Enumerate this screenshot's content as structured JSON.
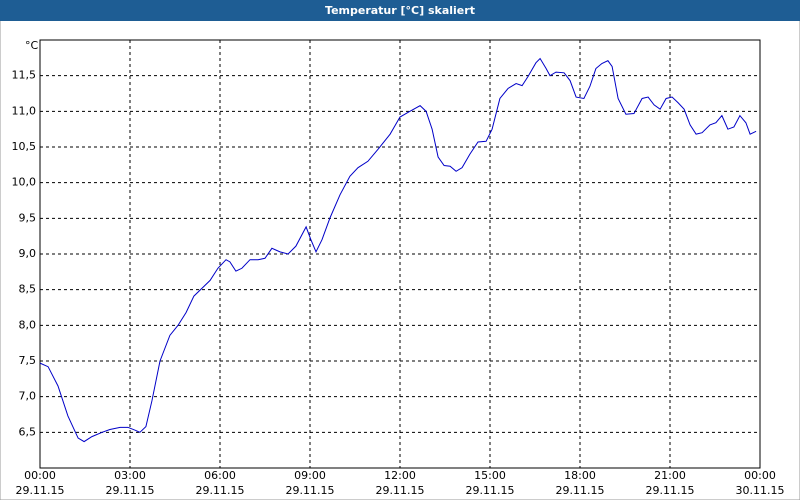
{
  "chart_data": {
    "type": "line",
    "title": "Temperatur [°C] skaliert",
    "y_label": "°C",
    "grid": true,
    "xlim": [
      0,
      24
    ],
    "ylim": [
      6,
      12
    ],
    "yticks": [
      {
        "value": 6.5,
        "label": "6,5"
      },
      {
        "value": 7,
        "label": "7,0"
      },
      {
        "value": 7.5,
        "label": "7,5"
      },
      {
        "value": 8,
        "label": "8,0"
      },
      {
        "value": 8.5,
        "label": "8,5"
      },
      {
        "value": 9,
        "label": "9,0"
      },
      {
        "value": 9.5,
        "label": "9,5"
      },
      {
        "value": 10,
        "label": "10,0"
      },
      {
        "value": 10.5,
        "label": "10,5"
      },
      {
        "value": 11,
        "label": "11,0"
      },
      {
        "value": 11.5,
        "label": "11,5"
      }
    ],
    "xticks": [
      {
        "value": 0,
        "label": "00:00",
        "date": "29.11.15"
      },
      {
        "value": 3,
        "label": "03:00",
        "date": "29.11.15"
      },
      {
        "value": 6,
        "label": "06:00",
        "date": "29.11.15"
      },
      {
        "value": 9,
        "label": "09:00",
        "date": "29.11.15"
      },
      {
        "value": 12,
        "label": "12:00",
        "date": "29.11.15"
      },
      {
        "value": 15,
        "label": "15:00",
        "date": "29.11.15"
      },
      {
        "value": 18,
        "label": "18:00",
        "date": "29.11.15"
      },
      {
        "value": 21,
        "label": "21:00",
        "date": "29.11.15"
      },
      {
        "value": 24,
        "label": "00:00",
        "date": "30.11.15"
      }
    ],
    "series": [
      {
        "color": "#0000c8",
        "x": [
          0,
          0.27,
          0.6,
          0.93,
          1.27,
          1.47,
          1.73,
          2.07,
          2.33,
          2.67,
          2.93,
          3.17,
          3.33,
          3.53,
          3.73,
          4.0,
          4.33,
          4.6,
          4.87,
          5.13,
          5.4,
          5.67,
          5.93,
          6.2,
          6.33,
          6.53,
          6.73,
          7.0,
          7.27,
          7.5,
          7.73,
          8.0,
          8.27,
          8.53,
          8.87,
          9.03,
          9.2,
          9.4,
          9.67,
          10.0,
          10.33,
          10.6,
          10.93,
          11.27,
          11.67,
          12.0,
          12.33,
          12.67,
          12.87,
          13.07,
          13.27,
          13.47,
          13.67,
          13.87,
          14.07,
          14.33,
          14.6,
          14.87,
          15.07,
          15.33,
          15.6,
          15.87,
          16.07,
          16.27,
          16.53,
          16.67,
          16.87,
          17.0,
          17.2,
          17.47,
          17.67,
          17.87,
          18.13,
          18.33,
          18.53,
          18.73,
          18.93,
          19.07,
          19.27,
          19.53,
          19.8,
          20.07,
          20.27,
          20.47,
          20.67,
          20.87,
          21.07,
          21.27,
          21.47,
          21.67,
          21.87,
          22.07,
          22.33,
          22.53,
          22.73,
          22.93,
          23.13,
          23.33,
          23.53,
          23.67,
          23.87
        ],
        "values": [
          7.47,
          7.42,
          7.15,
          6.73,
          6.42,
          6.37,
          6.44,
          6.5,
          6.54,
          6.57,
          6.57,
          6.53,
          6.5,
          6.58,
          6.94,
          7.5,
          7.86,
          8.0,
          8.18,
          8.41,
          8.52,
          8.63,
          8.8,
          8.92,
          8.89,
          8.76,
          8.8,
          8.92,
          8.92,
          8.94,
          9.08,
          9.03,
          9.0,
          9.11,
          9.38,
          9.2,
          9.03,
          9.2,
          9.51,
          9.83,
          10.09,
          10.21,
          10.3,
          10.47,
          10.68,
          10.92,
          11.0,
          11.08,
          11.0,
          10.75,
          10.36,
          10.24,
          10.23,
          10.16,
          10.21,
          10.4,
          10.57,
          10.58,
          10.75,
          11.18,
          11.32,
          11.39,
          11.36,
          11.49,
          11.68,
          11.74,
          11.6,
          11.5,
          11.55,
          11.54,
          11.43,
          11.2,
          11.18,
          11.35,
          11.6,
          11.67,
          11.71,
          11.63,
          11.18,
          10.96,
          10.97,
          11.18,
          11.2,
          11.09,
          11.03,
          11.18,
          11.2,
          11.12,
          11.03,
          10.81,
          10.68,
          10.7,
          10.81,
          10.84,
          10.94,
          10.75,
          10.78,
          10.94,
          10.84,
          10.68,
          10.72
        ]
      }
    ]
  }
}
